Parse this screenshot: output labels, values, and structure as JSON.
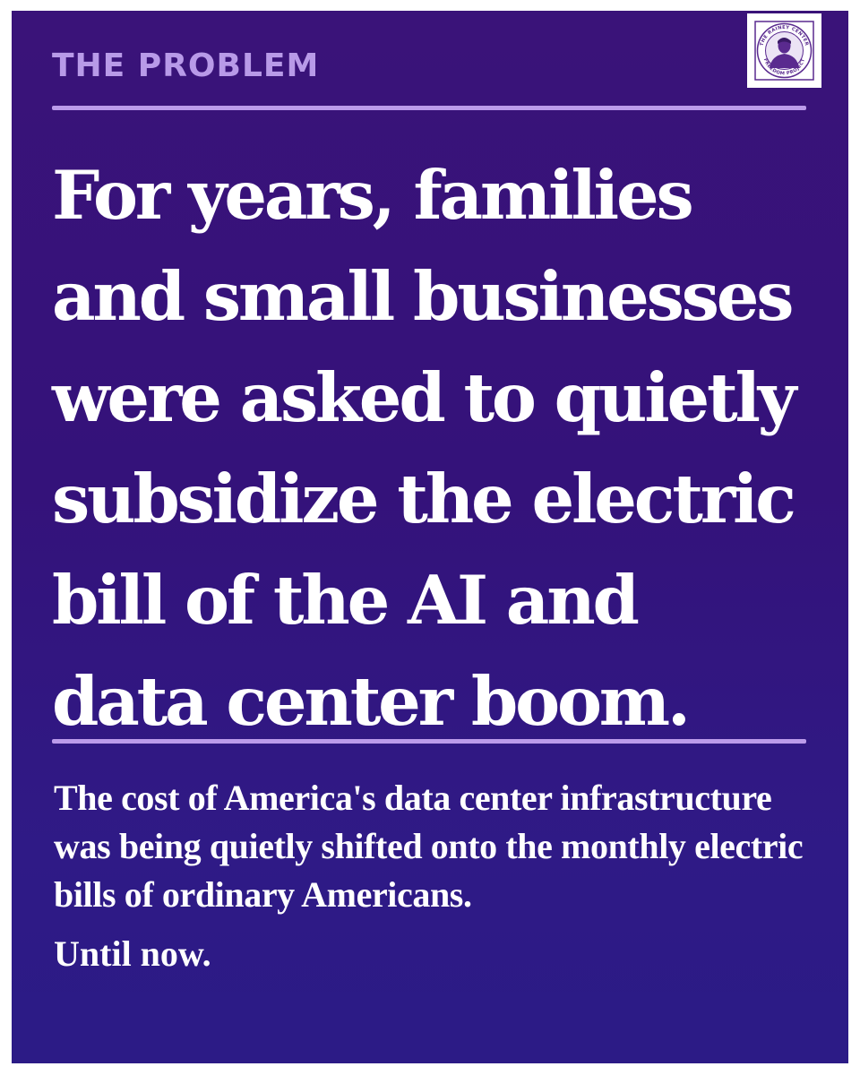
{
  "kicker": "THE PROBLEM",
  "headline": "For years, families\nand small businesses\nwere asked to quietly\nsubsidize the electric\nbill of the AI and\ndata center boom.",
  "body": "The cost of America's data center infrastructure was being quietly shifted onto the monthly electric bills of ordinary Americans.",
  "closing": "Until now.",
  "logo": {
    "icon": "freedom-project-stamp-icon",
    "text_top": "THE RAINEY CENTER",
    "text_bottom": "FREEDOM PROJECT"
  },
  "colors": {
    "background": "#34127a",
    "accent": "#b89ae8",
    "text": "#ffffff",
    "stamp_purple": "#5a2a8f"
  }
}
